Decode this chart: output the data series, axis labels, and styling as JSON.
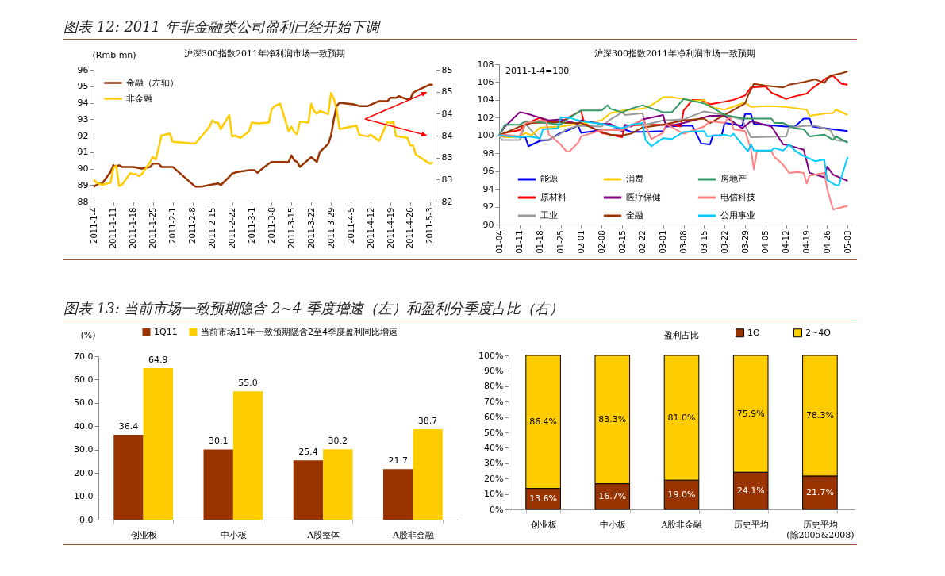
{
  "chart_data": [
    {
      "type": "line",
      "title": "沪深300指数2011年净利润市场一致预期",
      "ylabel": "(Rmb mn)",
      "annotations": [
        "图表 12:  2011 年非金融类公司盈利已经开始下调"
      ],
      "xlim": [
        "2011-01-04",
        "2011-05-05"
      ],
      "xticks": [
        {
          "value": "2011-01-04",
          "label": "2011-1-4"
        },
        {
          "value": "2011-01-11",
          "label": "2011-1-11"
        },
        {
          "value": "2011-01-18",
          "label": "2011-1-18"
        },
        {
          "value": "2011-01-25",
          "label": "2011-1-25"
        },
        {
          "value": "2011-02-01",
          "label": "2011-2-1"
        },
        {
          "value": "2011-02-08",
          "label": "2011-2-8"
        },
        {
          "value": "2011-02-15",
          "label": "2011-2-15"
        },
        {
          "value": "2011-02-22",
          "label": "2011-2-22"
        },
        {
          "value": "2011-03-01",
          "label": "2011-3-1"
        },
        {
          "value": "2011-03-08",
          "label": "2011-3-8"
        },
        {
          "value": "2011-03-15",
          "label": "2011-3-15"
        },
        {
          "value": "2011-03-22",
          "label": "2011-3-22"
        },
        {
          "value": "2011-03-29",
          "label": "2011-3-29"
        },
        {
          "value": "2011-04-05",
          "label": "2011-4-5"
        },
        {
          "value": "2011-04-12",
          "label": "2011-4-12"
        },
        {
          "value": "2011-04-19",
          "label": "2011-4-19"
        },
        {
          "value": "2011-04-26",
          "label": "2011-4-26"
        },
        {
          "value": "2011-05-03",
          "label": "2011-5-3"
        }
      ],
      "ylim": [
        88,
        96
      ],
      "yticks": [
        88,
        89,
        90,
        91,
        92,
        93,
        94,
        95,
        96
      ],
      "y2lim": [
        82,
        85
      ],
      "y2ticks": [
        82,
        {
          "value": 82.5,
          "label": "83"
        },
        83,
        {
          "value": 83.5,
          "label": "84"
        },
        84,
        {
          "value": 84.5,
          "label": "85"
        },
        85
      ],
      "legend": "top left",
      "series": [
        {
          "name": "金融（左轴）",
          "color": "#993300",
          "x": [
            "2011-01-04",
            "2011-01-06",
            "2011-01-07",
            "2011-01-10",
            "2011-01-11",
            "2011-01-12",
            "2011-01-13",
            "2011-01-14",
            "2011-01-17",
            "2011-01-18",
            "2011-01-21",
            "2011-01-24",
            "2011-01-25",
            "2011-01-27",
            "2011-01-28",
            "2011-02-01",
            "2011-02-09",
            "2011-02-11",
            "2011-02-14",
            "2011-02-17",
            "2011-02-18",
            "2011-02-21",
            "2011-02-22",
            "2011-02-24",
            "2011-02-28",
            "2011-03-01",
            "2011-03-02",
            "2011-03-03",
            "2011-03-04",
            "2011-03-07",
            "2011-03-08",
            "2011-03-10",
            "2011-03-14",
            "2011-03-15",
            "2011-03-16",
            "2011-03-17",
            "2011-03-18",
            "2011-03-22",
            "2011-03-24",
            "2011-03-25",
            "2011-03-28",
            "2011-03-29",
            "2011-03-30",
            "2011-03-31",
            "2011-04-01",
            "2011-04-06",
            "2011-04-08",
            "2011-04-11",
            "2011-04-15",
            "2011-04-18",
            "2011-04-19",
            "2011-04-21",
            "2011-04-22",
            "2011-04-25",
            "2011-04-26",
            "2011-04-27",
            "2011-04-28",
            "2011-05-03",
            "2011-05-04"
          ],
          "values": [
            88.9,
            89.1,
            89.1,
            89.8,
            90.2,
            90.1,
            90.2,
            90.1,
            90.1,
            90.1,
            90.0,
            90.1,
            90.3,
            90.3,
            90.1,
            90.1,
            88.9,
            88.9,
            89.0,
            89.1,
            89.0,
            89.5,
            89.7,
            89.8,
            89.9,
            89.9,
            89.9,
            89.75,
            89.9,
            90.3,
            90.4,
            90.4,
            90.4,
            90.8,
            90.5,
            90.4,
            90.1,
            90.7,
            90.4,
            91.0,
            91.5,
            92.0,
            93.0,
            93.8,
            94.0,
            93.9,
            93.8,
            93.8,
            94.1,
            94.1,
            94.3,
            94.3,
            94.4,
            94.2,
            94.2,
            94.6,
            94.7,
            95.1,
            95.1
          ]
        },
        {
          "name": "非金融",
          "color": "#ffcc00",
          "axis": "y2",
          "x": [
            "2011-01-04",
            "2011-01-05",
            "2011-01-07",
            "2011-01-10",
            "2011-01-11",
            "2011-01-12",
            "2011-01-13",
            "2011-01-14",
            "2011-01-17",
            "2011-01-18",
            "2011-01-19",
            "2011-01-20",
            "2011-01-21",
            "2011-01-24",
            "2011-01-25",
            "2011-01-26",
            "2011-01-27",
            "2011-01-28",
            "2011-01-31",
            "2011-02-01",
            "2011-02-09",
            "2011-02-10",
            "2011-02-14",
            "2011-02-15",
            "2011-02-16",
            "2011-02-17",
            "2011-02-18",
            "2011-02-21",
            "2011-02-22",
            "2011-02-23",
            "2011-02-25",
            "2011-02-28",
            "2011-03-01",
            "2011-03-03",
            "2011-03-07",
            "2011-03-08",
            "2011-03-09",
            "2011-03-11",
            "2011-03-14",
            "2011-03-15",
            "2011-03-16",
            "2011-03-17",
            "2011-03-18",
            "2011-03-21",
            "2011-03-22",
            "2011-03-23",
            "2011-03-24",
            "2011-03-25",
            "2011-03-28",
            "2011-03-29",
            "2011-03-30",
            "2011-03-31",
            "2011-04-01",
            "2011-04-07",
            "2011-04-08",
            "2011-04-11",
            "2011-04-12",
            "2011-04-14",
            "2011-04-15",
            "2011-04-18",
            "2011-04-19",
            "2011-04-20",
            "2011-04-21",
            "2011-04-25",
            "2011-04-26",
            "2011-04-27",
            "2011-04-28",
            "2011-05-03",
            "2011-05-04"
          ],
          "values": [
            82.5,
            82.43,
            82.38,
            82.43,
            82.77,
            82.82,
            82.35,
            82.38,
            82.65,
            82.62,
            82.63,
            82.58,
            82.62,
            82.9,
            83.02,
            82.96,
            83.22,
            83.5,
            83.55,
            83.36,
            83.32,
            83.4,
            83.7,
            83.85,
            83.8,
            83.8,
            83.65,
            83.97,
            83.48,
            83.5,
            83.45,
            83.6,
            83.8,
            83.78,
            83.8,
            84.1,
            84.17,
            84.23,
            83.6,
            83.7,
            83.58,
            83.53,
            83.82,
            83.8,
            84.23,
            84.06,
            84.0,
            84.06,
            83.99,
            84.47,
            84.34,
            84.1,
            83.65,
            83.73,
            83.52,
            83.48,
            83.52,
            83.43,
            83.38,
            83.82,
            83.78,
            83.82,
            83.49,
            83.45,
            83.28,
            83.28,
            83.07,
            82.86,
            82.89
          ]
        }
      ]
    },
    {
      "type": "line",
      "title": "沪深300指数2011年净利润市场一致预期",
      "annotations": [
        "2011-1-4=100"
      ],
      "xlim": [
        "2011-01-04",
        "2011-05-04"
      ],
      "xticks": [
        {
          "value": "2011-01-04",
          "label": "01-04"
        },
        {
          "value": "2011-01-11",
          "label": "01-11"
        },
        {
          "value": "2011-01-18",
          "label": "01-18"
        },
        {
          "value": "2011-01-25",
          "label": "01-25"
        },
        {
          "value": "2011-02-01",
          "label": "02-01"
        },
        {
          "value": "2011-02-08",
          "label": "02-08"
        },
        {
          "value": "2011-02-15",
          "label": "02-15"
        },
        {
          "value": "2011-02-22",
          "label": "02-22"
        },
        {
          "value": "2011-03-01",
          "label": "03-01"
        },
        {
          "value": "2011-03-08",
          "label": "03-08"
        },
        {
          "value": "2011-03-15",
          "label": "03-15"
        },
        {
          "value": "2011-03-22",
          "label": "03-22"
        },
        {
          "value": "2011-03-29",
          "label": "03-29"
        },
        {
          "value": "2011-04-05",
          "label": "04-05"
        },
        {
          "value": "2011-04-12",
          "label": "04-12"
        },
        {
          "value": "2011-04-19",
          "label": "04-19"
        },
        {
          "value": "2011-04-26",
          "label": "04-26"
        },
        {
          "value": "2011-05-03",
          "label": "05-03"
        }
      ],
      "ylim": [
        90,
        108
      ],
      "yticks": [
        90,
        92,
        94,
        96,
        98,
        100,
        102,
        104,
        106,
        108
      ],
      "legend": "bottom",
      "series": [
        {
          "name": "能源",
          "color": "#0000ff",
          "x": [
            "2011-01-04",
            "2011-01-06",
            "2011-01-11",
            "2011-01-13",
            "2011-01-14",
            "2011-01-18",
            "2011-01-21",
            "2011-01-25",
            "2011-01-27",
            "2011-01-31",
            "2011-02-01",
            "2011-02-08",
            "2011-02-15",
            "2011-02-18",
            "2011-02-22",
            "2011-03-01",
            "2011-03-02",
            "2011-03-08",
            "2011-03-11",
            "2011-03-14",
            "2011-03-17",
            "2011-03-18",
            "2011-03-21",
            "2011-03-22",
            "2011-03-28",
            "2011-03-29",
            "2011-03-31",
            "2011-04-01",
            "2011-04-12",
            "2011-04-15",
            "2011-04-18",
            "2011-04-20",
            "2011-04-21",
            "2011-04-28",
            "2011-05-03"
          ],
          "values": [
            100,
            99.8,
            99.8,
            99.8,
            98.8,
            99.4,
            99.5,
            100.3,
            100.5,
            101.1,
            100.3,
            100.6,
            100.8,
            100.4,
            100.4,
            100.5,
            101.0,
            101.1,
            101.1,
            99.1,
            99.0,
            100.0,
            100.0,
            101.4,
            101.1,
            102.4,
            102.4,
            101.3,
            101.0,
            101.0,
            101.9,
            101.9,
            101.0,
            100.7,
            100.5
          ]
        },
        {
          "name": "原材料",
          "color": "#ff0000",
          "x": [
            "2011-01-04",
            "2011-01-06",
            "2011-01-11",
            "2011-01-13",
            "2011-01-18",
            "2011-01-20",
            "2011-01-25",
            "2011-02-01",
            "2011-02-02",
            "2011-02-08",
            "2011-02-15",
            "2011-02-16",
            "2011-02-22",
            "2011-03-04",
            "2011-03-07",
            "2011-03-08",
            "2011-03-11",
            "2011-03-14",
            "2011-03-17",
            "2011-03-22",
            "2011-03-25",
            "2011-03-29",
            "2011-03-31",
            "2011-04-05",
            "2011-04-07",
            "2011-04-12",
            "2011-04-15",
            "2011-04-19",
            "2011-04-21",
            "2011-04-26",
            "2011-04-28",
            "2011-05-01",
            "2011-05-03"
          ],
          "values": [
            100,
            100.3,
            100.6,
            101.3,
            102.0,
            101.6,
            101.5,
            102.8,
            101.4,
            100.3,
            99.8,
            101.1,
            101.2,
            101.2,
            101.0,
            102.8,
            104.0,
            104.0,
            103.5,
            103.8,
            104.0,
            104.5,
            105.4,
            105.5,
            104.8,
            104.1,
            104.4,
            104.7,
            105.3,
            106.5,
            106.7,
            105.8,
            105.7
          ]
        },
        {
          "name": "工业",
          "color": "#999999",
          "x": [
            "2011-01-04",
            "2011-01-05",
            "2011-01-11",
            "2011-01-13",
            "2011-01-18",
            "2011-01-21",
            "2011-01-25",
            "2011-01-27",
            "2011-01-31",
            "2011-02-08",
            "2011-02-11",
            "2011-02-15",
            "2011-02-16",
            "2011-02-22",
            "2011-02-23",
            "2011-03-01",
            "2011-03-08",
            "2011-03-11",
            "2011-03-15",
            "2011-03-22",
            "2011-03-28",
            "2011-03-31",
            "2011-04-12",
            "2011-04-13",
            "2011-04-19",
            "2011-04-22",
            "2011-04-27",
            "2011-04-29",
            "2011-05-03"
          ],
          "values": [
            100,
            99.5,
            99.5,
            101.3,
            99.5,
            99.5,
            100.2,
            100.7,
            101.1,
            101.0,
            101.8,
            102.6,
            102.3,
            102.5,
            101.2,
            101.7,
            101.8,
            102.2,
            102.7,
            102.3,
            101.8,
            99.8,
            99.9,
            100.9,
            101.1,
            101.1,
            100.6,
            99.5,
            99.3
          ]
        },
        {
          "name": "消费",
          "color": "#ffcc00",
          "x": [
            "2011-01-04",
            "2011-01-06",
            "2011-01-11",
            "2011-01-13",
            "2011-01-15",
            "2011-01-18",
            "2011-01-25",
            "2011-01-31",
            "2011-02-08",
            "2011-02-11",
            "2011-02-15",
            "2011-02-22",
            "2011-02-25",
            "2011-03-01",
            "2011-03-04",
            "2011-03-08",
            "2011-03-11",
            "2011-03-15",
            "2011-03-17",
            "2011-03-22",
            "2011-03-29",
            "2011-03-31",
            "2011-04-05",
            "2011-04-07",
            "2011-04-12",
            "2011-04-19",
            "2011-04-20",
            "2011-04-26",
            "2011-04-28",
            "2011-04-29",
            "2011-05-03"
          ],
          "values": [
            100,
            99.8,
            99.8,
            100.3,
            100.0,
            100.9,
            101.0,
            101.3,
            101.7,
            102.5,
            102.8,
            103.0,
            103.4,
            104.3,
            104.3,
            104.1,
            103.9,
            104.0,
            103.2,
            102.9,
            103.7,
            103.2,
            103.3,
            103.3,
            103.2,
            102.9,
            102.2,
            102.5,
            102.5,
            102.9,
            102.3
          ]
        },
        {
          "name": "医疗保健",
          "color": "#800080",
          "x": [
            "2011-01-04",
            "2011-01-06",
            "2011-01-11",
            "2011-01-13",
            "2011-01-18",
            "2011-01-21",
            "2011-01-25",
            "2011-01-31",
            "2011-02-01",
            "2011-02-08",
            "2011-02-11",
            "2011-02-15",
            "2011-02-16",
            "2011-02-18",
            "2011-02-22",
            "2011-02-25",
            "2011-03-01",
            "2011-03-02",
            "2011-03-08",
            "2011-03-17",
            "2011-03-22",
            "2011-03-28",
            "2011-03-31",
            "2011-04-07",
            "2011-04-11",
            "2011-04-13",
            "2011-04-15",
            "2011-04-18",
            "2011-04-20",
            "2011-04-25",
            "2011-04-26",
            "2011-04-28",
            "2011-05-03"
          ],
          "values": [
            100,
            101.0,
            102.6,
            102.5,
            102.0,
            101.7,
            101.8,
            101.3,
            101.7,
            101.3,
            101.3,
            100.5,
            101.2,
            101.0,
            101.8,
            102.0,
            102.3,
            101.0,
            101.4,
            102.2,
            102.2,
            100.8,
            101.6,
            101.0,
            99.0,
            98.9,
            98.7,
            98.4,
            95.8,
            95.3,
            96.5,
            95.6,
            94.9
          ]
        },
        {
          "name": "金融",
          "color": "#993300",
          "x": [
            "2011-01-04",
            "2011-01-11",
            "2011-01-15",
            "2011-01-25",
            "2011-01-27",
            "2011-02-01",
            "2011-02-08",
            "2011-02-11",
            "2011-02-15",
            "2011-02-18",
            "2011-02-22",
            "2011-03-01",
            "2011-03-08",
            "2011-03-15",
            "2011-03-17",
            "2011-03-22",
            "2011-03-29",
            "2011-03-30",
            "2011-04-01",
            "2011-04-05",
            "2011-04-11",
            "2011-04-13",
            "2011-04-18",
            "2011-04-22",
            "2011-04-25",
            "2011-04-27",
            "2011-05-01",
            "2011-05-03"
          ],
          "values": [
            100,
            101.0,
            101.4,
            101.5,
            101.4,
            101.4,
            100.4,
            100.1,
            100.0,
            100.2,
            100.9,
            101.2,
            101.7,
            101.9,
            101.4,
            102.3,
            103.6,
            104.5,
            105.8,
            105.6,
            105.4,
            105.7,
            106.0,
            106.3,
            105.9,
            106.7,
            107.0,
            107.2
          ]
        },
        {
          "name": "房地产",
          "color": "#339966",
          "x": [
            "2011-01-04",
            "2011-01-06",
            "2011-01-11",
            "2011-01-13",
            "2011-01-18",
            "2011-01-25",
            "2011-01-28",
            "2011-02-01",
            "2011-02-08",
            "2011-02-10",
            "2011-02-11",
            "2011-02-15",
            "2011-02-18",
            "2011-02-22",
            "2011-03-01",
            "2011-03-04",
            "2011-03-08",
            "2011-03-15",
            "2011-03-17",
            "2011-03-22",
            "2011-03-29",
            "2011-04-07",
            "2011-04-08",
            "2011-04-11",
            "2011-04-15",
            "2011-04-18",
            "2011-04-20",
            "2011-04-25",
            "2011-04-28",
            "2011-04-29",
            "2011-05-03"
          ],
          "values": [
            100,
            101.2,
            101.2,
            101.6,
            101.5,
            101.2,
            102.0,
            102.8,
            102.8,
            103.4,
            103.0,
            102.6,
            103.0,
            103.4,
            102.6,
            102.6,
            104.1,
            103.6,
            103.3,
            102.3,
            101.9,
            101.9,
            101.4,
            101.4,
            100.8,
            100.7,
            99.9,
            100.1,
            99.5,
            99.9,
            99.2
          ]
        },
        {
          "name": "电信科技",
          "color": "#ff8080",
          "x": [
            "2011-01-04",
            "2011-01-06",
            "2011-01-11",
            "2011-01-13",
            "2011-01-18",
            "2011-01-20",
            "2011-01-21",
            "2011-01-25",
            "2011-01-27",
            "2011-01-28",
            "2011-01-31",
            "2011-02-01",
            "2011-02-08",
            "2011-02-15",
            "2011-02-22",
            "2011-02-25",
            "2011-03-01",
            "2011-03-02",
            "2011-03-08",
            "2011-03-15",
            "2011-03-17",
            "2011-03-22",
            "2011-03-23",
            "2011-03-24",
            "2011-03-25",
            "2011-03-29",
            "2011-03-31",
            "2011-04-01",
            "2011-04-02",
            "2011-04-07",
            "2011-04-08",
            "2011-04-11",
            "2011-04-13",
            "2011-04-16",
            "2011-04-18",
            "2011-04-19",
            "2011-04-20",
            "2011-04-25",
            "2011-04-26",
            "2011-04-28",
            "2011-05-03"
          ],
          "values": [
            100,
            100.1,
            99.9,
            101.4,
            101.7,
            101.6,
            100.1,
            99.0,
            98.2,
            98.2,
            99.2,
            99.9,
            100.6,
            100.6,
            101.8,
            99.6,
            100.3,
            101.3,
            100.2,
            101.0,
            101.6,
            101.4,
            101.9,
            102.0,
            100.7,
            100.5,
            98.4,
            96.2,
            98.2,
            98.2,
            97.6,
            96.7,
            95.8,
            95.9,
            95.8,
            94.6,
            95.5,
            95.8,
            94.0,
            91.7,
            92.1
          ]
        },
        {
          "name": "公用事业",
          "color": "#00ccff",
          "x": [
            "2011-01-04",
            "2011-01-11",
            "2011-01-14",
            "2011-01-18",
            "2011-01-19",
            "2011-01-24",
            "2011-01-25",
            "2011-01-28",
            "2011-02-01",
            "2011-02-08",
            "2011-02-15",
            "2011-02-18",
            "2011-02-22",
            "2011-02-23",
            "2011-02-25",
            "2011-03-01",
            "2011-03-04",
            "2011-03-08",
            "2011-03-15",
            "2011-03-16",
            "2011-03-22",
            "2011-03-24",
            "2011-03-25",
            "2011-03-30",
            "2011-03-31",
            "2011-04-01",
            "2011-04-07",
            "2011-04-08",
            "2011-04-11",
            "2011-04-13",
            "2011-04-15",
            "2011-04-18",
            "2011-04-20",
            "2011-04-22",
            "2011-04-25",
            "2011-04-26",
            "2011-04-29",
            "2011-04-30",
            "2011-05-03"
          ],
          "values": [
            100,
            99.8,
            99.9,
            99.7,
            100.7,
            100.8,
            102.0,
            102.0,
            101.6,
            101.3,
            100.8,
            101.2,
            101.4,
            99.5,
            98.8,
            99.7,
            99.6,
            100.4,
            100.5,
            99.9,
            100.1,
            99.9,
            100.2,
            98.2,
            99.0,
            98.3,
            98.3,
            98.6,
            98.3,
            99.0,
            98.3,
            97.7,
            97.4,
            97.1,
            97.3,
            95.0,
            94.4,
            94.4,
            97.6
          ]
        }
      ]
    },
    {
      "type": "bar",
      "ylabel": "(%)",
      "annotations": [
        "图表 13:  当前市场一致预期隐含 2~4 季度增速（左）和盈利分季度占比（右）"
      ],
      "categories": [
        "创业板",
        "中小板",
        "A股整体",
        "A股非金融"
      ],
      "ylim": [
        0,
        70
      ],
      "yticks": [
        {
          "value": 0,
          "label": "0.0"
        },
        {
          "value": 10,
          "label": "10.0"
        },
        {
          "value": 20,
          "label": "20.0"
        },
        {
          "value": 30,
          "label": "30.0"
        },
        {
          "value": 40,
          "label": "40.0"
        },
        {
          "value": 50,
          "label": "50.0"
        },
        {
          "value": 60,
          "label": "60.0"
        },
        {
          "value": 70,
          "label": "70.0"
        }
      ],
      "legend": "top",
      "series": [
        {
          "name": "1Q11",
          "color": "#993300",
          "values": [
            36.4,
            30.1,
            25.4,
            21.7
          ],
          "value_labels": [
            "36.4",
            "30.1",
            "25.4",
            "21.7"
          ]
        },
        {
          "name": "当前市场11年一致预期隐含2至4季度盈利同比增速",
          "color": "#ffcc00",
          "values": [
            64.9,
            55.0,
            30.2,
            38.7
          ],
          "value_labels": [
            "64.9",
            "55.0",
            "30.2",
            "38.7"
          ]
        }
      ]
    },
    {
      "type": "bar",
      "title": "盈利占比",
      "stacked": true,
      "categories": [
        "创业板",
        "中小板",
        "A股非金融",
        "历史平均",
        "历史平均\n(除2005&2008)"
      ],
      "ylim": [
        0,
        100
      ],
      "yticks": [
        {
          "value": 0,
          "label": "0%"
        },
        {
          "value": 10,
          "label": "10%"
        },
        {
          "value": 20,
          "label": "20%"
        },
        {
          "value": 30,
          "label": "30%"
        },
        {
          "value": 40,
          "label": "40%"
        },
        {
          "value": 50,
          "label": "50%"
        },
        {
          "value": 60,
          "label": "60%"
        },
        {
          "value": 70,
          "label": "70%"
        },
        {
          "value": 80,
          "label": "80%"
        },
        {
          "value": 90,
          "label": "90%"
        },
        {
          "value": 100,
          "label": "100%"
        }
      ],
      "legend": "top right",
      "series": [
        {
          "name": "1Q",
          "color": "#993300",
          "values": [
            13.6,
            16.7,
            19.0,
            24.1,
            21.7
          ],
          "value_labels": [
            "13.6%",
            "16.7%",
            "19.0%",
            "24.1%",
            "21.7%"
          ]
        },
        {
          "name": "2~4Q",
          "color": "#ffcc00",
          "values": [
            86.4,
            83.3,
            81.0,
            75.9,
            78.3
          ],
          "value_labels": [
            "86.4%",
            "83.3%",
            "81.0%",
            "75.9%",
            "78.3%"
          ]
        }
      ]
    }
  ]
}
